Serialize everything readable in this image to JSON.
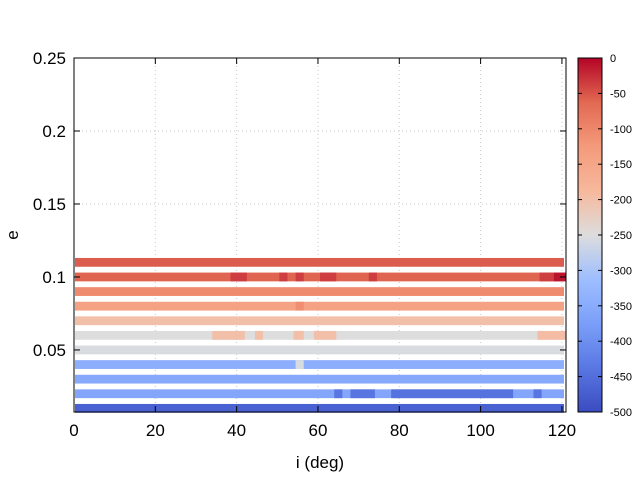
{
  "chart_data": {
    "type": "heatmap",
    "title": "",
    "xlabel": "i (deg)",
    "ylabel": "e",
    "xlim": [
      0,
      121
    ],
    "ylim": [
      0.0075,
      0.25
    ],
    "x_ticks": [
      0,
      20,
      40,
      60,
      80,
      100,
      120
    ],
    "x_tick_labels": [
      "0",
      "20",
      "40",
      "60",
      "80",
      "100",
      "120"
    ],
    "y_ticks": [
      0.05,
      0.1,
      0.15,
      0.2,
      0.25
    ],
    "y_tick_labels": [
      "0.05",
      "0.1",
      "0.15",
      "0.2",
      "0.25"
    ],
    "grid": true,
    "colorbar": {
      "min": -500,
      "max": 0,
      "ticks": [
        0,
        -50,
        -100,
        -150,
        -200,
        -250,
        -300,
        -350,
        -400,
        -450,
        -500
      ],
      "tick_labels": [
        "0",
        "-50",
        "-100",
        "-150",
        "-200",
        "-250",
        "-300",
        "-350",
        "-400",
        "-450",
        "-500"
      ],
      "colormap": "coolwarm",
      "stops": [
        [
          -500,
          "#3b4cc0"
        ],
        [
          -437.5,
          "#5977e3"
        ],
        [
          -375,
          "#7b9ff9"
        ],
        [
          -312.5,
          "#9ebeff"
        ],
        [
          -250,
          "#dddddd"
        ],
        [
          -187.5,
          "#f7b89c"
        ],
        [
          -125,
          "#f49a7b"
        ],
        [
          -62.5,
          "#e26952"
        ],
        [
          0,
          "#b40426"
        ]
      ]
    },
    "rows": [
      {
        "e": 0.01,
        "value": -470,
        "segments": []
      },
      {
        "e": 0.02,
        "value": -360,
        "segments": [
          {
            "from": 64,
            "to": 66,
            "value": -440
          },
          {
            "from": 68,
            "to": 74,
            "value": -440
          },
          {
            "from": 78,
            "to": 108,
            "value": -445
          },
          {
            "from": 113,
            "to": 115,
            "value": -440
          }
        ]
      },
      {
        "e": 0.03,
        "value": -355,
        "segments": []
      },
      {
        "e": 0.04,
        "value": -345,
        "segments": [
          {
            "from": 54.5,
            "to": 56.5,
            "value": -255
          }
        ]
      },
      {
        "e": 0.05,
        "value": -255,
        "segments": []
      },
      {
        "e": 0.06,
        "value": -250,
        "segments": [
          {
            "from": 34,
            "to": 42,
            "value": -200
          },
          {
            "from": 44.5,
            "to": 46.5,
            "value": -200
          },
          {
            "from": 54,
            "to": 56.5,
            "value": -200
          },
          {
            "from": 59,
            "to": 64.5,
            "value": -200
          },
          {
            "from": 114,
            "to": 121,
            "value": -195
          }
        ]
      },
      {
        "e": 0.07,
        "value": -200,
        "segments": []
      },
      {
        "e": 0.08,
        "value": -140,
        "segments": [
          {
            "from": 54.5,
            "to": 56.5,
            "value": -110
          }
        ]
      },
      {
        "e": 0.09,
        "value": -105,
        "segments": []
      },
      {
        "e": 0.1,
        "value": -60,
        "segments": [
          {
            "from": 38.5,
            "to": 42.5,
            "value": -35
          },
          {
            "from": 50.5,
            "to": 52.5,
            "value": -35
          },
          {
            "from": 54.5,
            "to": 56.5,
            "value": -35
          },
          {
            "from": 60.5,
            "to": 64.5,
            "value": -35
          },
          {
            "from": 72.5,
            "to": 74.5,
            "value": -35
          },
          {
            "from": 114.5,
            "to": 118,
            "value": -35
          },
          {
            "from": 118,
            "to": 121,
            "value": -10
          }
        ]
      },
      {
        "e": 0.11,
        "value": -55,
        "segments": []
      }
    ]
  }
}
